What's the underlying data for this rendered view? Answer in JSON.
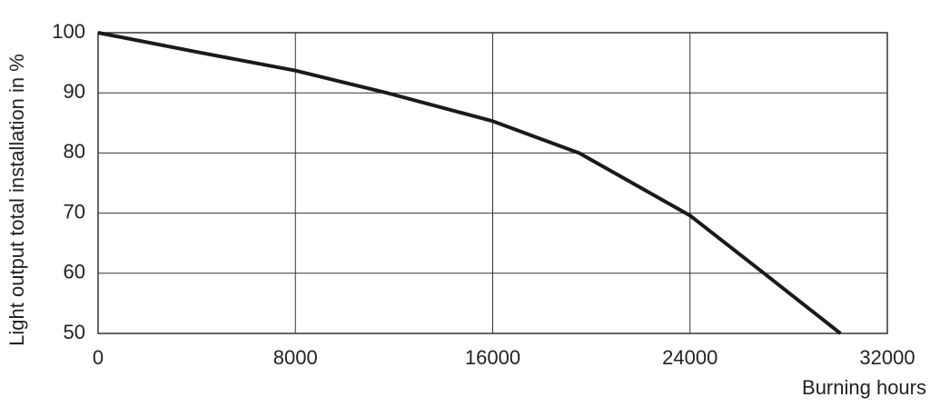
{
  "chart_data": {
    "type": "line",
    "x_label": "Burning hours",
    "y_label": "Light output total installation in %",
    "x": [
      0,
      4000,
      8000,
      11700,
      16000,
      19500,
      24000,
      27000,
      30100
    ],
    "series": [
      {
        "color": "#1a1a1a",
        "values": [
          100,
          96.8,
          93.7,
          90,
          85.3,
          80,
          69.6,
          60,
          50
        ]
      }
    ],
    "xlim": [
      0,
      32000
    ],
    "xticks": [
      0,
      8000,
      16000,
      24000,
      32000
    ],
    "ylim": [
      50,
      100
    ],
    "yticks": [
      50,
      60,
      70,
      80,
      90,
      100
    ],
    "grid": true
  }
}
